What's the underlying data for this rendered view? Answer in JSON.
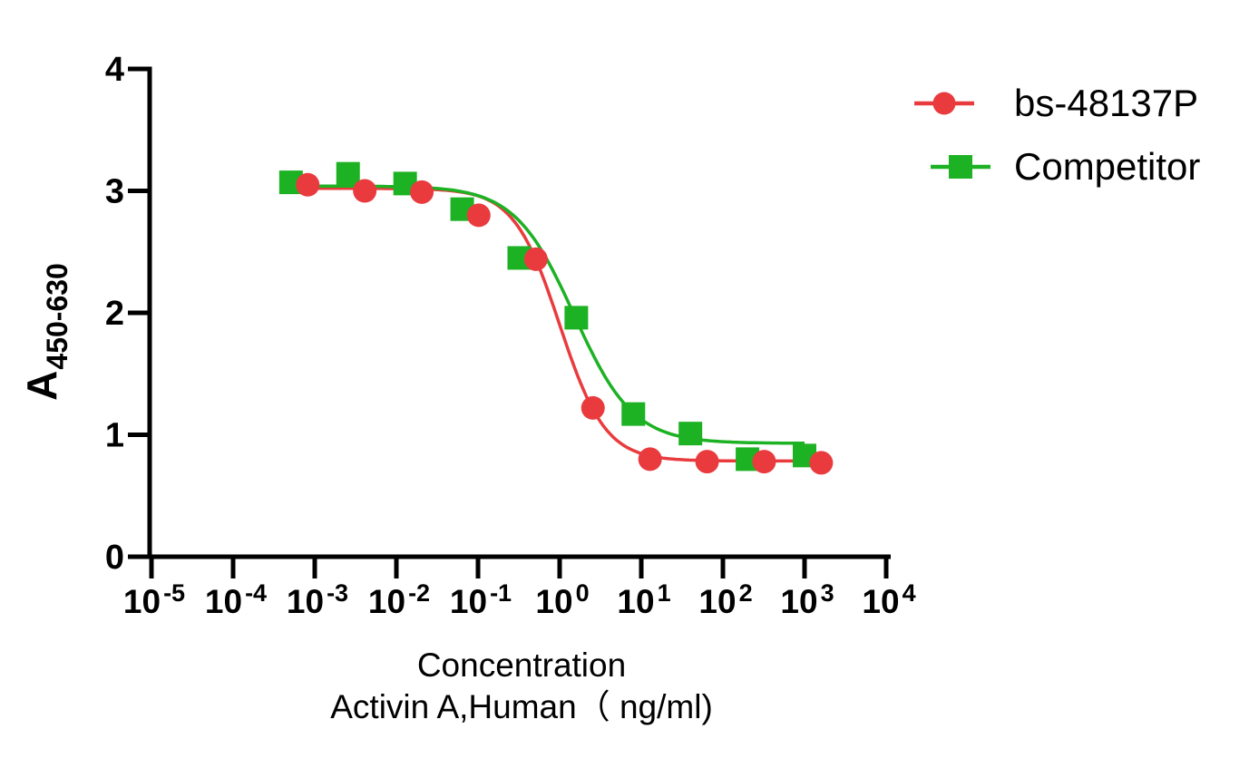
{
  "figure": {
    "background_color": "#ffffff",
    "axis_color": "#000000",
    "text_color": "#000000"
  },
  "legend": {
    "items": [
      {
        "label": "bs-48137P",
        "marker": "circle",
        "color": "#e93b3e"
      },
      {
        "label": "Competitor",
        "marker": "square",
        "color": "#1db124"
      }
    ]
  },
  "x_axis": {
    "title_line1": "Concentration",
    "title_line2": "Activin A,Human（ ng/ml)",
    "scale": "log10",
    "tick_base": "10",
    "tick_exponents": [
      -5,
      -4,
      -3,
      -2,
      -1,
      0,
      1,
      2,
      3,
      4
    ]
  },
  "y_axis": {
    "label_main": "A",
    "label_sub": "450-630",
    "ticks": [
      "0",
      "1",
      "2",
      "3",
      "4"
    ],
    "range": [
      0,
      4
    ]
  },
  "chart_data": {
    "type": "scatter",
    "title": "",
    "xlabel": "Concentration Activin A,Human (ng/ml)",
    "ylabel": "A450-630",
    "x_scale": "log10",
    "xlim": [
      1e-05,
      10000
    ],
    "ylim": [
      0,
      4
    ],
    "grid": false,
    "legend_position": "top-right",
    "series": [
      {
        "name": "bs-48137P",
        "color": "#e93b3e",
        "marker": "circle",
        "x": [
          0.00082,
          0.0041,
          0.0205,
          0.102,
          0.512,
          2.56,
          12.8,
          64,
          320,
          1600
        ],
        "y": [
          3.05,
          3.0,
          2.99,
          2.8,
          2.44,
          1.22,
          0.8,
          0.78,
          0.78,
          0.77
        ],
        "fit_4pl": {
          "top": 3.02,
          "bottom": 0.785,
          "ic50": 1.0,
          "hill": 1.55
        },
        "fit_range": [
          0.00055,
          1600
        ]
      },
      {
        "name": "Competitor",
        "color": "#1db124",
        "marker": "square",
        "x": [
          0.000512,
          0.00256,
          0.0128,
          0.064,
          0.32,
          1.6,
          8,
          40,
          200,
          1000
        ],
        "y": [
          3.07,
          3.14,
          3.06,
          2.85,
          2.45,
          1.96,
          1.17,
          1.01,
          0.8,
          0.83
        ],
        "fit_4pl": {
          "top": 3.04,
          "bottom": 0.93,
          "ic50": 1.5,
          "hill": 1.2
        },
        "fit_range": [
          0.00038,
          1000
        ]
      }
    ]
  }
}
